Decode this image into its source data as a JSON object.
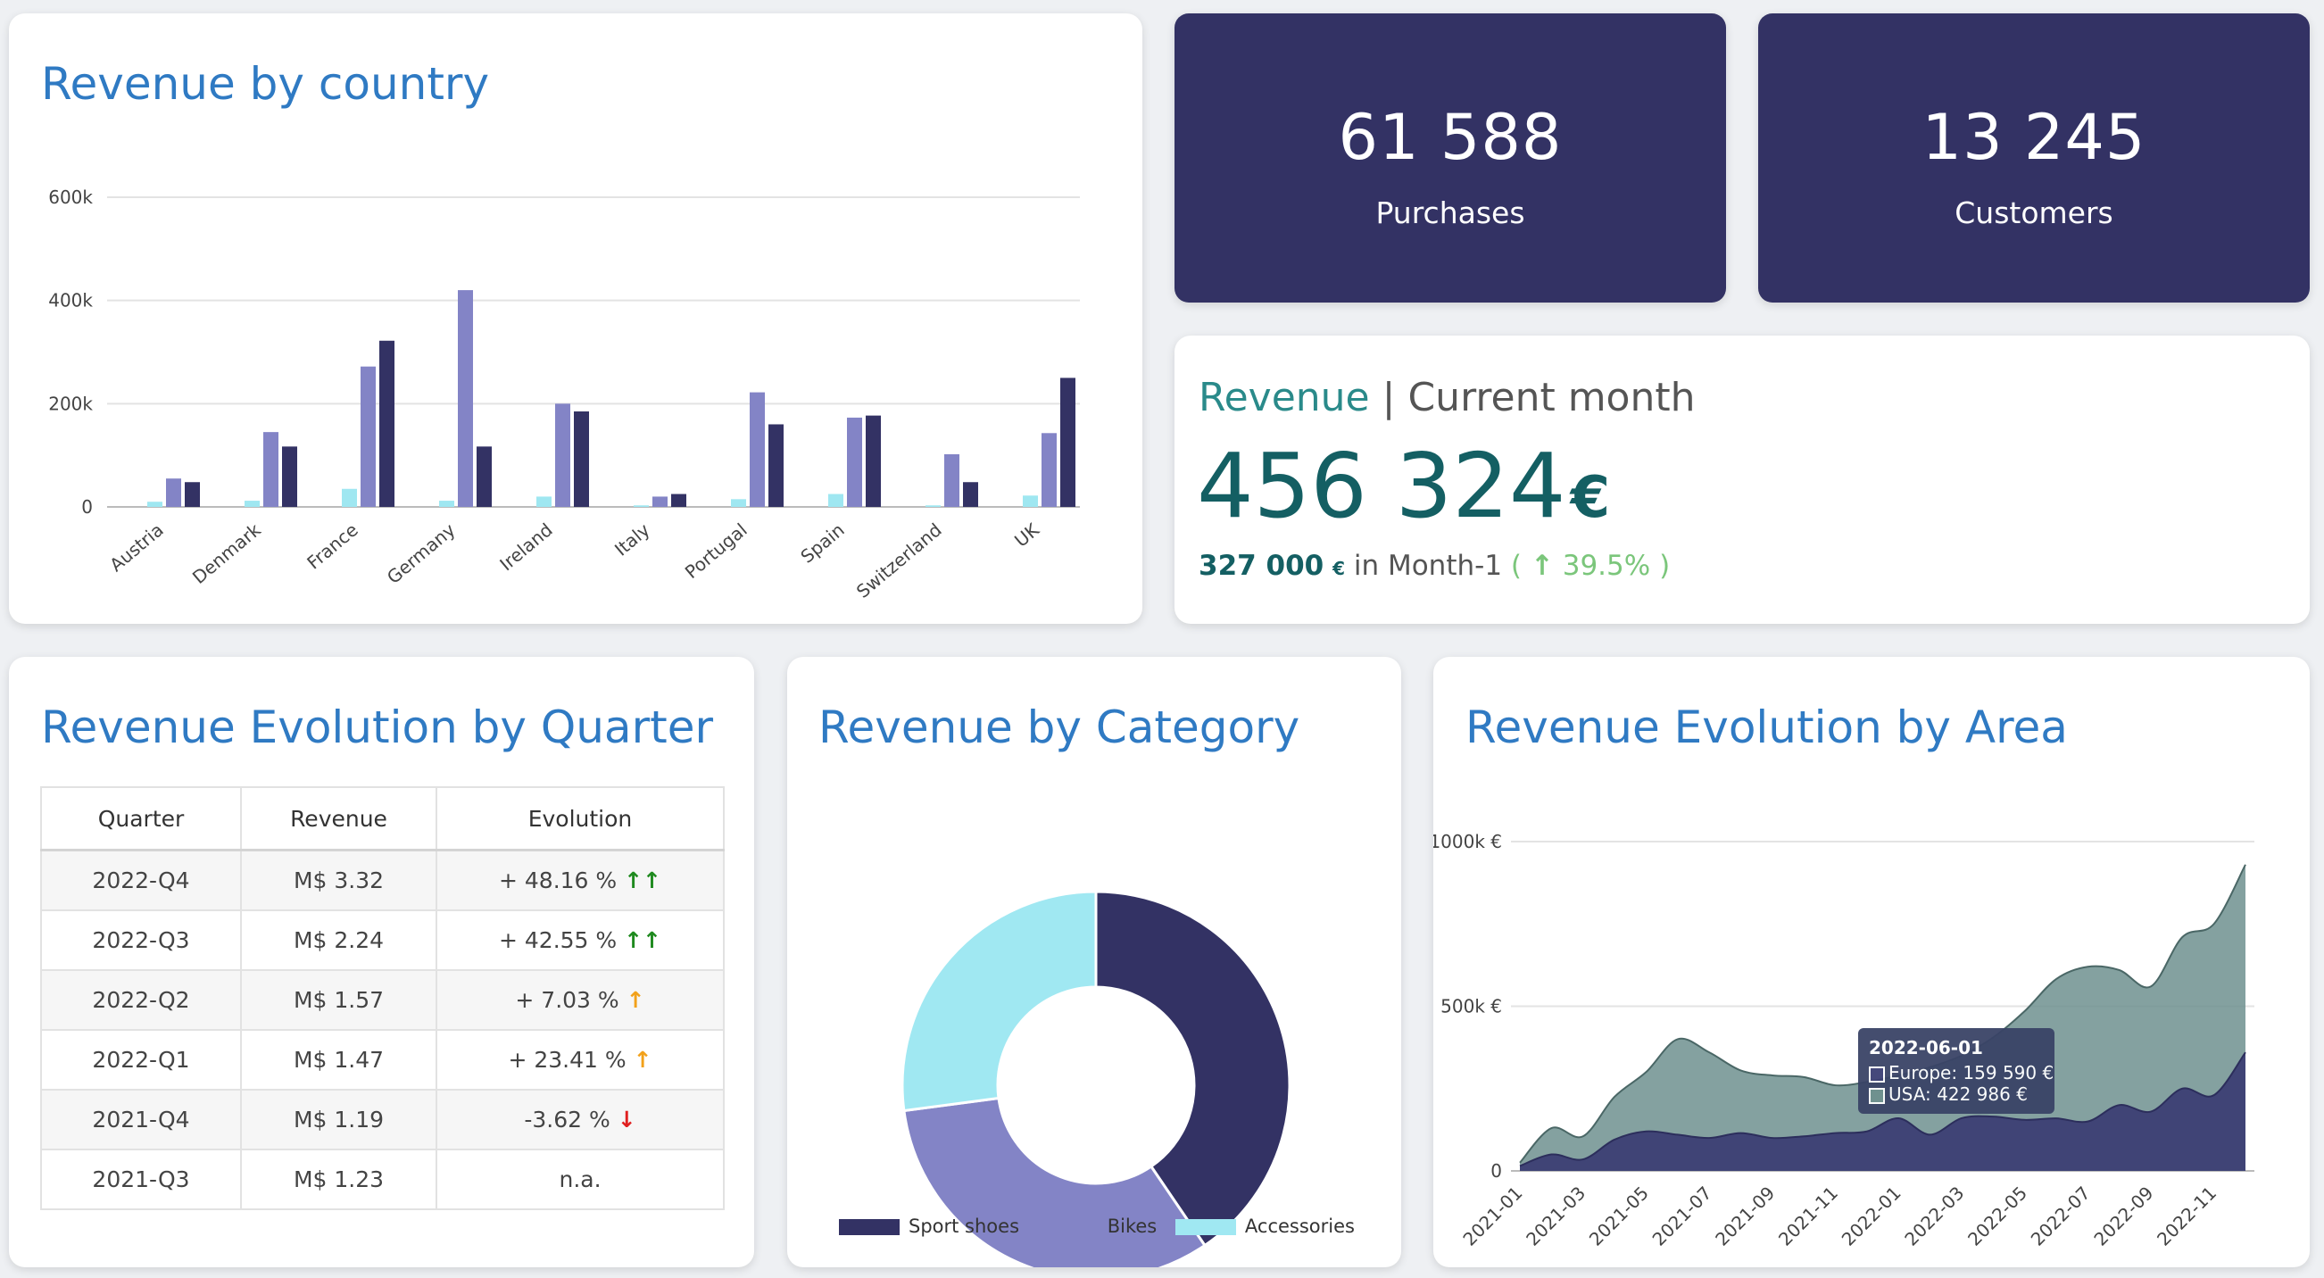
{
  "country_card": {
    "title": "Revenue by country",
    "chart_data": {
      "type": "bar",
      "categories": [
        "Austria",
        "Denmark",
        "France",
        "Germany",
        "Ireland",
        "Italy",
        "Portugal",
        "Spain",
        "Switzerland",
        "UK"
      ],
      "series": [
        {
          "name": "Accessories",
          "color": "#9fe7f1",
          "values": [
            10000,
            12000,
            35000,
            12000,
            20000,
            3000,
            15000,
            25000,
            3000,
            22000
          ]
        },
        {
          "name": "Bikes",
          "color": "#8384c6",
          "values": [
            55000,
            145000,
            272000,
            420000,
            200000,
            20000,
            222000,
            173000,
            102000,
            143000
          ]
        },
        {
          "name": "Sport shoes",
          "color": "#333264",
          "values": [
            48000,
            117000,
            322000,
            117000,
            185000,
            25000,
            160000,
            177000,
            48000,
            250000
          ]
        }
      ],
      "ylim": [
        0,
        600000
      ],
      "yticks": [
        0,
        200000,
        400000,
        600000
      ],
      "ytick_labels": [
        "0",
        "200k",
        "400k",
        "600k"
      ]
    }
  },
  "kpis": [
    {
      "value": "61 588",
      "label": "Purchases"
    },
    {
      "value": "13 245",
      "label": "Customers"
    }
  ],
  "revenue_card": {
    "title_main": "Revenue",
    "title_sep": "|",
    "title_sub": "Current month",
    "value": "456 324",
    "currency": "€",
    "prev_value": "327 000",
    "prev_currency": "€",
    "prev_label": "in Month-1",
    "change_open": "(",
    "change_arrow": "↑",
    "change": "39.5%",
    "change_close": ")"
  },
  "quarter_card": {
    "title": "Revenue Evolution by Quarter",
    "headers": [
      "Quarter",
      "Revenue",
      "Evolution"
    ],
    "rows": [
      {
        "quarter": "2022-Q4",
        "revenue": "M$ 3.32",
        "evolution": "+ 48.16 %",
        "arrow": "↑↑",
        "trend": "up2"
      },
      {
        "quarter": "2022-Q3",
        "revenue": "M$ 2.24",
        "evolution": "+ 42.55 %",
        "arrow": "↑↑",
        "trend": "up2"
      },
      {
        "quarter": "2022-Q2",
        "revenue": "M$ 1.57",
        "evolution": "+ 7.03 %",
        "arrow": "↑",
        "trend": "up1"
      },
      {
        "quarter": "2022-Q1",
        "revenue": "M$ 1.47",
        "evolution": "+ 23.41 %",
        "arrow": "↑",
        "trend": "up1"
      },
      {
        "quarter": "2021-Q4",
        "revenue": "M$ 1.19",
        "evolution": "-3.62 %",
        "arrow": "↓",
        "trend": "down"
      },
      {
        "quarter": "2021-Q3",
        "revenue": "M$ 1.23",
        "evolution": "n.a.",
        "arrow": "",
        "trend": "none"
      }
    ]
  },
  "category_card": {
    "title": "Revenue by Category",
    "chart_data": {
      "type": "pie",
      "donut": true,
      "labels": [
        "Sport shoes",
        "Bikes",
        "Accessories"
      ],
      "values": [
        40.5,
        32.4,
        27.1
      ],
      "colors": [
        "#333264",
        "#8384c6",
        "#a0e8f2"
      ]
    }
  },
  "area_card": {
    "title": "Revenue Evolution by Area",
    "chart_data": {
      "type": "area",
      "stacked": true,
      "x": [
        "2021-01",
        "2021-02",
        "2021-03",
        "2021-04",
        "2021-05",
        "2021-06",
        "2021-07",
        "2021-08",
        "2021-09",
        "2021-10",
        "2021-11",
        "2021-12",
        "2022-01",
        "2022-02",
        "2022-03",
        "2022-04",
        "2022-05",
        "2022-06",
        "2022-07",
        "2022-08",
        "2022-09",
        "2022-10",
        "2022-11",
        "2022-12"
      ],
      "xtick_labels": [
        "2021-01",
        "2021-03",
        "2021-05",
        "2021-07",
        "2021-09",
        "2021-11",
        "2022-01",
        "2022-03",
        "2022-05",
        "2022-07",
        "2022-09",
        "2022-11"
      ],
      "series": [
        {
          "name": "Europe",
          "color": "#3c3f74",
          "values": [
            15000,
            50000,
            35000,
            95000,
            120000,
            110000,
            100000,
            115000,
            100000,
            105000,
            115000,
            120000,
            160000,
            110000,
            160000,
            165000,
            155000,
            159590,
            150000,
            200000,
            180000,
            250000,
            230000,
            360000
          ]
        },
        {
          "name": "USA",
          "color": "#6e918f",
          "values": [
            10000,
            80000,
            70000,
            130000,
            180000,
            290000,
            260000,
            190000,
            190000,
            180000,
            145000,
            150000,
            130000,
            205000,
            190000,
            240000,
            330000,
            422986,
            470000,
            410000,
            380000,
            460000,
            520000,
            570000
          ]
        }
      ],
      "ylim": [
        0,
        1000000
      ],
      "yticks": [
        0,
        500000,
        1000000
      ],
      "ytick_labels": [
        "0",
        "500k €",
        "1000k €"
      ],
      "tooltip": {
        "date": "2022-06-01",
        "europe": "Europe: 159 590 €",
        "usa": "USA: 422 986 €"
      }
    }
  }
}
